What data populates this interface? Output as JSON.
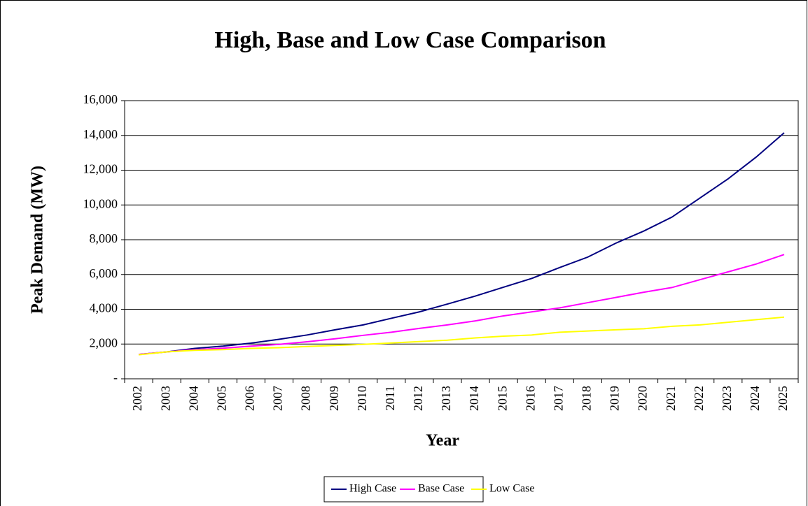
{
  "chart_data": {
    "type": "line",
    "title": "High, Base and Low Case Comparison",
    "x_label": "Year",
    "y_label": "Peak Demand (MW)",
    "categories": [
      "2002",
      "2003",
      "2004",
      "2005",
      "2006",
      "2007",
      "2008",
      "2009",
      "2010",
      "2011",
      "2012",
      "2013",
      "2014",
      "2015",
      "2016",
      "2017",
      "2018",
      "2019",
      "2020",
      "2021",
      "2022",
      "2023",
      "2024",
      "2025"
    ],
    "series": [
      {
        "name": "High Case",
        "color": "#000080",
        "values": [
          1400,
          1550,
          1750,
          1880,
          2050,
          2270,
          2520,
          2820,
          3100,
          3480,
          3850,
          4300,
          4760,
          5270,
          5770,
          6400,
          7000,
          7800,
          8500,
          9300,
          10400,
          11500,
          12750,
          14150
        ]
      },
      {
        "name": "Base Case",
        "color": "#ff00ff",
        "values": [
          1400,
          1550,
          1680,
          1760,
          1880,
          1980,
          2130,
          2300,
          2500,
          2680,
          2900,
          3100,
          3330,
          3620,
          3850,
          4080,
          4380,
          4680,
          4980,
          5250,
          5700,
          6150,
          6600,
          7150
        ]
      },
      {
        "name": "Low Case",
        "color": "#ffff00",
        "values": [
          1380,
          1550,
          1640,
          1680,
          1750,
          1790,
          1860,
          1920,
          1980,
          2060,
          2140,
          2220,
          2350,
          2450,
          2520,
          2680,
          2750,
          2820,
          2880,
          3020,
          3100,
          3250,
          3400,
          3550
        ]
      }
    ],
    "ylim": [
      0,
      16000
    ],
    "yticks": [
      {
        "value": 0,
        "label": "-"
      },
      {
        "value": 2000,
        "label": "2,000"
      },
      {
        "value": 4000,
        "label": "4,000"
      },
      {
        "value": 6000,
        "label": "6,000"
      },
      {
        "value": 8000,
        "label": "8,000"
      },
      {
        "value": 10000,
        "label": "10,000"
      },
      {
        "value": 12000,
        "label": "12,000"
      },
      {
        "value": 14000,
        "label": "14,000"
      },
      {
        "value": 16000,
        "label": "16,000"
      }
    ],
    "grid": true,
    "legend": "bottom"
  }
}
